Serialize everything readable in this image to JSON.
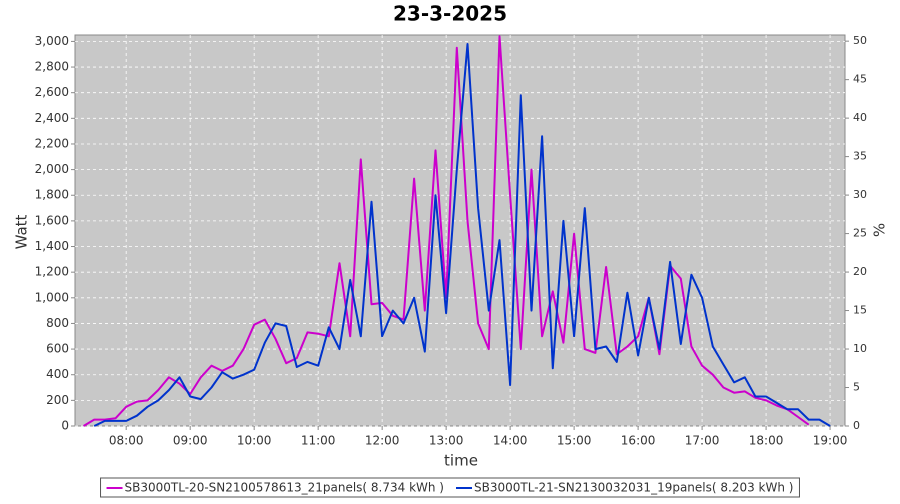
{
  "chart_data": {
    "type": "line",
    "title": "23-3-2025",
    "x_label": "time",
    "y_label": "Watt",
    "y2_label": "%",
    "x": [
      "07:20",
      "07:30",
      "07:40",
      "07:50",
      "08:00",
      "08:10",
      "08:20",
      "08:30",
      "08:40",
      "08:50",
      "09:00",
      "09:10",
      "09:20",
      "09:30",
      "09:40",
      "09:50",
      "10:00",
      "10:10",
      "10:20",
      "10:30",
      "10:40",
      "10:50",
      "11:00",
      "11:10",
      "11:20",
      "11:30",
      "11:40",
      "11:50",
      "12:00",
      "12:10",
      "12:20",
      "12:30",
      "12:40",
      "12:50",
      "13:00",
      "13:10",
      "13:20",
      "13:30",
      "13:40",
      "13:50",
      "14:00",
      "14:10",
      "14:20",
      "14:30",
      "14:40",
      "14:50",
      "15:00",
      "15:10",
      "15:20",
      "15:30",
      "15:40",
      "15:50",
      "16:00",
      "16:10",
      "16:20",
      "16:30",
      "16:40",
      "16:50",
      "17:00",
      "17:10",
      "17:20",
      "17:30",
      "17:40",
      "17:50",
      "18:00",
      "18:10",
      "18:20",
      "18:30",
      "18:40",
      "18:50",
      "19:00"
    ],
    "xlim": [
      "07:12",
      "19:14"
    ],
    "xticks": [
      "08:00",
      "09:00",
      "10:00",
      "11:00",
      "12:00",
      "13:00",
      "14:00",
      "15:00",
      "16:00",
      "17:00",
      "18:00",
      "19:00"
    ],
    "ylim": [
      0,
      3050
    ],
    "yticks": [
      0,
      200,
      400,
      600,
      800,
      {
        "value": 1000,
        "label": "1,000"
      },
      {
        "value": 1200,
        "label": "1,200"
      },
      {
        "value": 1400,
        "label": "1,400"
      },
      {
        "value": 1600,
        "label": "1,600"
      },
      {
        "value": 1800,
        "label": "1,800"
      },
      {
        "value": 2000,
        "label": "2,000"
      },
      {
        "value": 2200,
        "label": "2,200"
      },
      {
        "value": 2400,
        "label": "2,400"
      },
      {
        "value": 2600,
        "label": "2,600"
      },
      {
        "value": 2800,
        "label": "2,800"
      },
      {
        "value": 3000,
        "label": "3,000"
      }
    ],
    "y2lim": [
      0,
      50.8
    ],
    "y2ticks": [
      0,
      5,
      10,
      15,
      20,
      25,
      30,
      35,
      40,
      45,
      50
    ],
    "grid": true,
    "legend": "bottom",
    "series": [
      {
        "name": "SB3000TL-20-SN2100578613_21panels( 8.734 kWh )",
        "color": "#cc00cc",
        "values": [
          0,
          50,
          50,
          60,
          150,
          190,
          200,
          280,
          380,
          330,
          250,
          380,
          470,
          430,
          470,
          600,
          790,
          830,
          680,
          490,
          530,
          730,
          720,
          700,
          1270,
          700,
          2080,
          950,
          960,
          860,
          830,
          1930,
          900,
          2150,
          1000,
          2950,
          1600,
          800,
          600,
          3040,
          1800,
          600,
          2000,
          700,
          1050,
          650,
          1500,
          600,
          570,
          1240,
          560,
          620,
          700,
          1000,
          560,
          1250,
          1150,
          620,
          470,
          400,
          300,
          260,
          270,
          220,
          200,
          160,
          130,
          70,
          10,
          null,
          null
        ]
      },
      {
        "name": "SB3000TL-21-SN2130032031_19panels( 8.203 kWh )",
        "color": "#0033cc",
        "values": [
          null,
          0,
          40,
          40,
          40,
          80,
          150,
          200,
          280,
          380,
          230,
          210,
          300,
          420,
          370,
          400,
          440,
          650,
          800,
          780,
          460,
          500,
          470,
          770,
          600,
          1140,
          700,
          1750,
          700,
          900,
          800,
          1000,
          580,
          1800,
          880,
          2000,
          2980,
          1700,
          900,
          1450,
          320,
          2580,
          900,
          2260,
          450,
          1600,
          700,
          1700,
          600,
          620,
          500,
          1040,
          550,
          1000,
          600,
          1280,
          640,
          1180,
          1000,
          620,
          480,
          340,
          380,
          230,
          230,
          180,
          130,
          130,
          50,
          50,
          0
        ]
      }
    ]
  }
}
